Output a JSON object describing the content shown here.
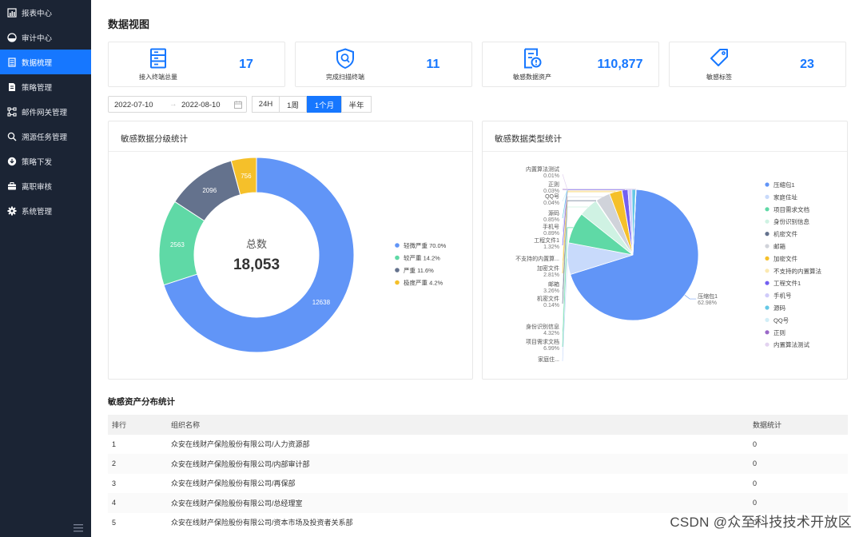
{
  "sidebar": {
    "items": [
      {
        "label": "报表中心",
        "icon": "bar-chart-icon",
        "active": false
      },
      {
        "label": "审计中心",
        "icon": "dashboard-icon",
        "active": false
      },
      {
        "label": "数据梳理",
        "icon": "list-icon",
        "active": true
      },
      {
        "label": "策略管理",
        "icon": "document-icon",
        "active": false
      },
      {
        "label": "邮件网关管理",
        "icon": "nodes-icon",
        "active": false
      },
      {
        "label": "溯源任务管理",
        "icon": "search-icon",
        "active": false
      },
      {
        "label": "策略下发",
        "icon": "download-icon",
        "active": false
      },
      {
        "label": "离职审核",
        "icon": "briefcase-icon",
        "active": false
      },
      {
        "label": "系统管理",
        "icon": "gear-icon",
        "active": false
      }
    ]
  },
  "page": {
    "title": "数据视图"
  },
  "stats": [
    {
      "label": "接入终端总量",
      "value": "17",
      "icon": "server-icon"
    },
    {
      "label": "完成扫描终端",
      "value": "11",
      "icon": "scan-shield-icon"
    },
    {
      "label": "敏感数据资产",
      "value": "110,877",
      "icon": "alert-document-icon"
    },
    {
      "label": "敏感标签",
      "value": "23",
      "icon": "tag-icon"
    }
  ],
  "filter": {
    "start_date": "2022-07-10",
    "end_date": "2022-08-10",
    "arrow": "→",
    "ranges": [
      "24H",
      "1周",
      "1个月",
      "半年"
    ],
    "active_range": "1个月"
  },
  "colors": {
    "primary": "#1677ff",
    "sidebar_bg": "#1b2434",
    "donut": [
      "#6195f7",
      "#5fd9a6",
      "#64728d",
      "#f5c02a"
    ],
    "pie": [
      "#6195f7",
      "#c8dafb",
      "#5fd9a6",
      "#cff2e3",
      "#64728d",
      "#d0d3da",
      "#f5c02a",
      "#fbe9b1",
      "#7360f1",
      "#d0cbfa",
      "#66c8e6",
      "#d2eef7",
      "#9a68c8",
      "#e3d3f0"
    ]
  },
  "chart_data": [
    {
      "type": "pie",
      "title": "敏感数据分级统计",
      "center_label": "总数",
      "center_value": "18,053",
      "categories": [
        "轻微严重",
        "较严重",
        "严重",
        "极度严重"
      ],
      "values": [
        12638,
        2563,
        2096,
        756
      ],
      "legend": [
        "轻微严重 70.0%",
        "较严重 14.2%",
        "严重 11.6%",
        "极度严重 4.2%"
      ],
      "value_labels": [
        "12638",
        "2563",
        "2096",
        "756"
      ],
      "legend_position": "right"
    },
    {
      "type": "pie",
      "title": "敏感数据类型统计",
      "categories": [
        "压缩包1",
        "家庭住址",
        "项目需求文档",
        "身份识别信息",
        "机密文件",
        "邮箱",
        "加密文件",
        "不支持的内置算法",
        "工程文件1",
        "手机号",
        "源码",
        "QQ号",
        "正则",
        "内置算法测试"
      ],
      "values": [
        62.98,
        7.1,
        6.99,
        4.32,
        0.14,
        3.26,
        2.81,
        0.05,
        1.32,
        0.89,
        0.85,
        0.04,
        0.03,
        0.01
      ],
      "slice_labels": [
        {
          "name": "压缩包1",
          "pct": "62.98%"
        },
        {
          "name": "家庭住...",
          "pct": ""
        },
        {
          "name": "项目需求文档",
          "pct": "6.99%"
        },
        {
          "name": "身份识别信息",
          "pct": "4.32%"
        },
        {
          "name": "机密文件",
          "pct": "0.14%"
        },
        {
          "name": "邮箱",
          "pct": "3.26%"
        },
        {
          "name": "加密文件",
          "pct": "2.81%"
        },
        {
          "name": "不支持的内置算...",
          "pct": ""
        },
        {
          "name": "工程文件1",
          "pct": "1.32%"
        },
        {
          "name": "手机号",
          "pct": "0.89%"
        },
        {
          "name": "源码",
          "pct": "0.85%"
        },
        {
          "name": "QQ号",
          "pct": "0.04%"
        },
        {
          "name": "正则",
          "pct": "0.03%"
        },
        {
          "name": "内置算法测试",
          "pct": "0.01%"
        }
      ],
      "legend": [
        "压缩包1",
        "家庭住址",
        "项目需求文档",
        "身份识别信息",
        "机密文件",
        "邮箱",
        "加密文件",
        "不支持的内置算法",
        "工程文件1",
        "手机号",
        "源码",
        "QQ号",
        "正则",
        "内置算法测试"
      ],
      "legend_position": "right"
    }
  ],
  "table": {
    "title": "敏感资产分布统计",
    "headers": [
      "排行",
      "组织名称",
      "数据统计"
    ],
    "rows": [
      [
        "1",
        "众安在线财产保险股份有限公司/人力资源部",
        "0"
      ],
      [
        "2",
        "众安在线财产保险股份有限公司/内部审计部",
        "0"
      ],
      [
        "3",
        "众安在线财产保险股份有限公司/再保部",
        "0"
      ],
      [
        "4",
        "众安在线财产保险股份有限公司/总经理室",
        "0"
      ],
      [
        "5",
        "众安在线财产保险股份有限公司/资本市场及投资者关系部",
        "0"
      ]
    ]
  },
  "watermark": "CSDN @众至科技技术开放区"
}
